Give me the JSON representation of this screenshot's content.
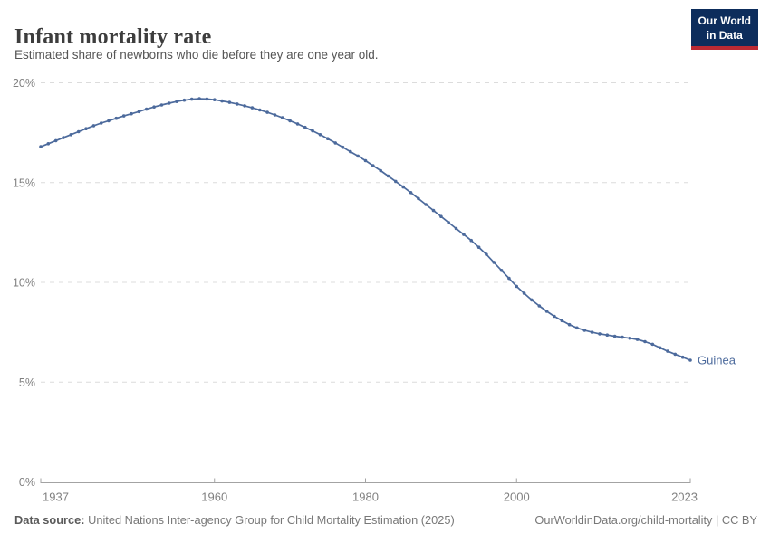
{
  "header": {
    "title": "Infant mortality rate",
    "subtitle": "Estimated share of newborns who die before they are one year old."
  },
  "logo": {
    "line1": "Our World",
    "line2": "in Data",
    "bg_color": "#0d2d5c",
    "accent_color": "#bb2a33"
  },
  "colors": {
    "grid": "#dcdcdc",
    "axis": "#a3a3a3",
    "tick_label": "#808080",
    "series_blue": "#4c6a9c"
  },
  "chart_data": {
    "type": "line",
    "title": "Infant mortality rate",
    "subtitle": "Estimated share of newborns who die before they are one year old.",
    "xlabel": "",
    "ylabel": "",
    "xlim": [
      1937,
      2023
    ],
    "ylim": [
      0,
      20
    ],
    "x_ticks": [
      1937,
      1960,
      1980,
      2000,
      2023
    ],
    "y_ticks": [
      0,
      5,
      10,
      15,
      20
    ],
    "y_suffix": "%",
    "grid": "horizontal-dashed",
    "legend_position": "end-of-line-label",
    "markers": true,
    "series": [
      {
        "name": "Guinea",
        "color": "#4c6a9c",
        "x": [
          1937,
          1938,
          1939,
          1940,
          1941,
          1942,
          1943,
          1944,
          1945,
          1946,
          1947,
          1948,
          1949,
          1950,
          1951,
          1952,
          1953,
          1954,
          1955,
          1956,
          1957,
          1958,
          1959,
          1960,
          1961,
          1962,
          1963,
          1964,
          1965,
          1966,
          1967,
          1968,
          1969,
          1970,
          1971,
          1972,
          1973,
          1974,
          1975,
          1976,
          1977,
          1978,
          1979,
          1980,
          1981,
          1982,
          1983,
          1984,
          1985,
          1986,
          1987,
          1988,
          1989,
          1990,
          1991,
          1992,
          1993,
          1994,
          1995,
          1996,
          1997,
          1998,
          1999,
          2000,
          2001,
          2002,
          2003,
          2004,
          2005,
          2006,
          2007,
          2008,
          2009,
          2010,
          2011,
          2012,
          2013,
          2014,
          2015,
          2016,
          2017,
          2018,
          2019,
          2020,
          2021,
          2022,
          2023
        ],
        "values": [
          16.8,
          16.95,
          17.1,
          17.25,
          17.4,
          17.55,
          17.7,
          17.85,
          17.98,
          18.1,
          18.22,
          18.34,
          18.45,
          18.56,
          18.68,
          18.79,
          18.89,
          18.98,
          19.06,
          19.13,
          19.18,
          19.2,
          19.19,
          19.15,
          19.09,
          19.02,
          18.94,
          18.85,
          18.75,
          18.64,
          18.52,
          18.39,
          18.25,
          18.1,
          17.94,
          17.77,
          17.59,
          17.4,
          17.2,
          16.99,
          16.77,
          16.55,
          16.33,
          16.1,
          15.85,
          15.6,
          15.33,
          15.06,
          14.78,
          14.5,
          14.2,
          13.9,
          13.6,
          13.3,
          13.0,
          12.7,
          12.4,
          12.1,
          11.76,
          11.4,
          11.0,
          10.6,
          10.2,
          9.8,
          9.45,
          9.12,
          8.82,
          8.55,
          8.3,
          8.08,
          7.88,
          7.72,
          7.6,
          7.5,
          7.42,
          7.36,
          7.3,
          7.25,
          7.2,
          7.14,
          7.03,
          6.9,
          6.72,
          6.55,
          6.4,
          6.25,
          6.1
        ]
      }
    ]
  },
  "footer": {
    "source_label": "Data source:",
    "source_text": " United Nations Inter-agency Group for Child Mortality Estimation (2025)",
    "link_text": "OurWorldinData.org/child-mortality | CC BY"
  }
}
